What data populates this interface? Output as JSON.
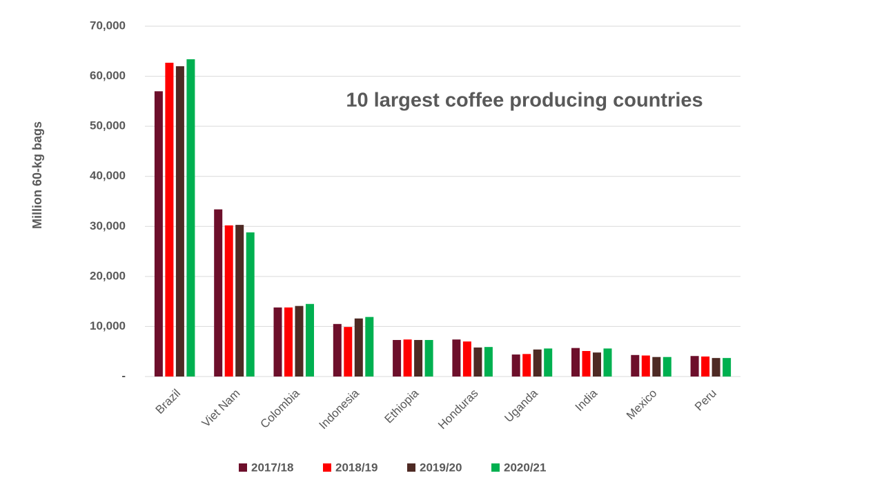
{
  "chart_data": {
    "type": "bar",
    "title": "10 largest coffee producing countries",
    "y_label": "Million 60-kg bags",
    "categories": [
      "Brazil",
      "Viet Nam",
      "Colombia",
      "Indonesia",
      "Ethiopia",
      "Honduras",
      "Uganda",
      "India",
      "Mexico",
      "Peru"
    ],
    "series": [
      {
        "name": "2017/18",
        "color": "#6d0f2b",
        "values": [
          57000,
          33400,
          13800,
          10500,
          7300,
          7400,
          4400,
          5700,
          4300,
          4100
        ]
      },
      {
        "name": "2018/19",
        "color": "#ff0000",
        "values": [
          62700,
          30200,
          13800,
          9900,
          7400,
          7000,
          4500,
          5100,
          4200,
          4000
        ]
      },
      {
        "name": "2019/20",
        "color": "#4e2a24",
        "values": [
          62000,
          30300,
          14100,
          11600,
          7300,
          5800,
          5400,
          4800,
          3900,
          3700
        ]
      },
      {
        "name": "2020/21",
        "color": "#00b050",
        "values": [
          63400,
          28800,
          14500,
          11900,
          7300,
          5900,
          5600,
          5600,
          3900,
          3700
        ]
      }
    ],
    "ylim": [
      0,
      70000
    ],
    "yticks": [
      {
        "value": 0,
        "label": "-"
      },
      {
        "value": 10000,
        "label": "10,000"
      },
      {
        "value": 20000,
        "label": "20,000"
      },
      {
        "value": 30000,
        "label": "30,000"
      },
      {
        "value": 40000,
        "label": "40,000"
      },
      {
        "value": 50000,
        "label": "50,000"
      },
      {
        "value": 60000,
        "label": "60,000"
      },
      {
        "value": 70000,
        "label": "70,000"
      }
    ],
    "grid": true,
    "legend": "bottom"
  }
}
